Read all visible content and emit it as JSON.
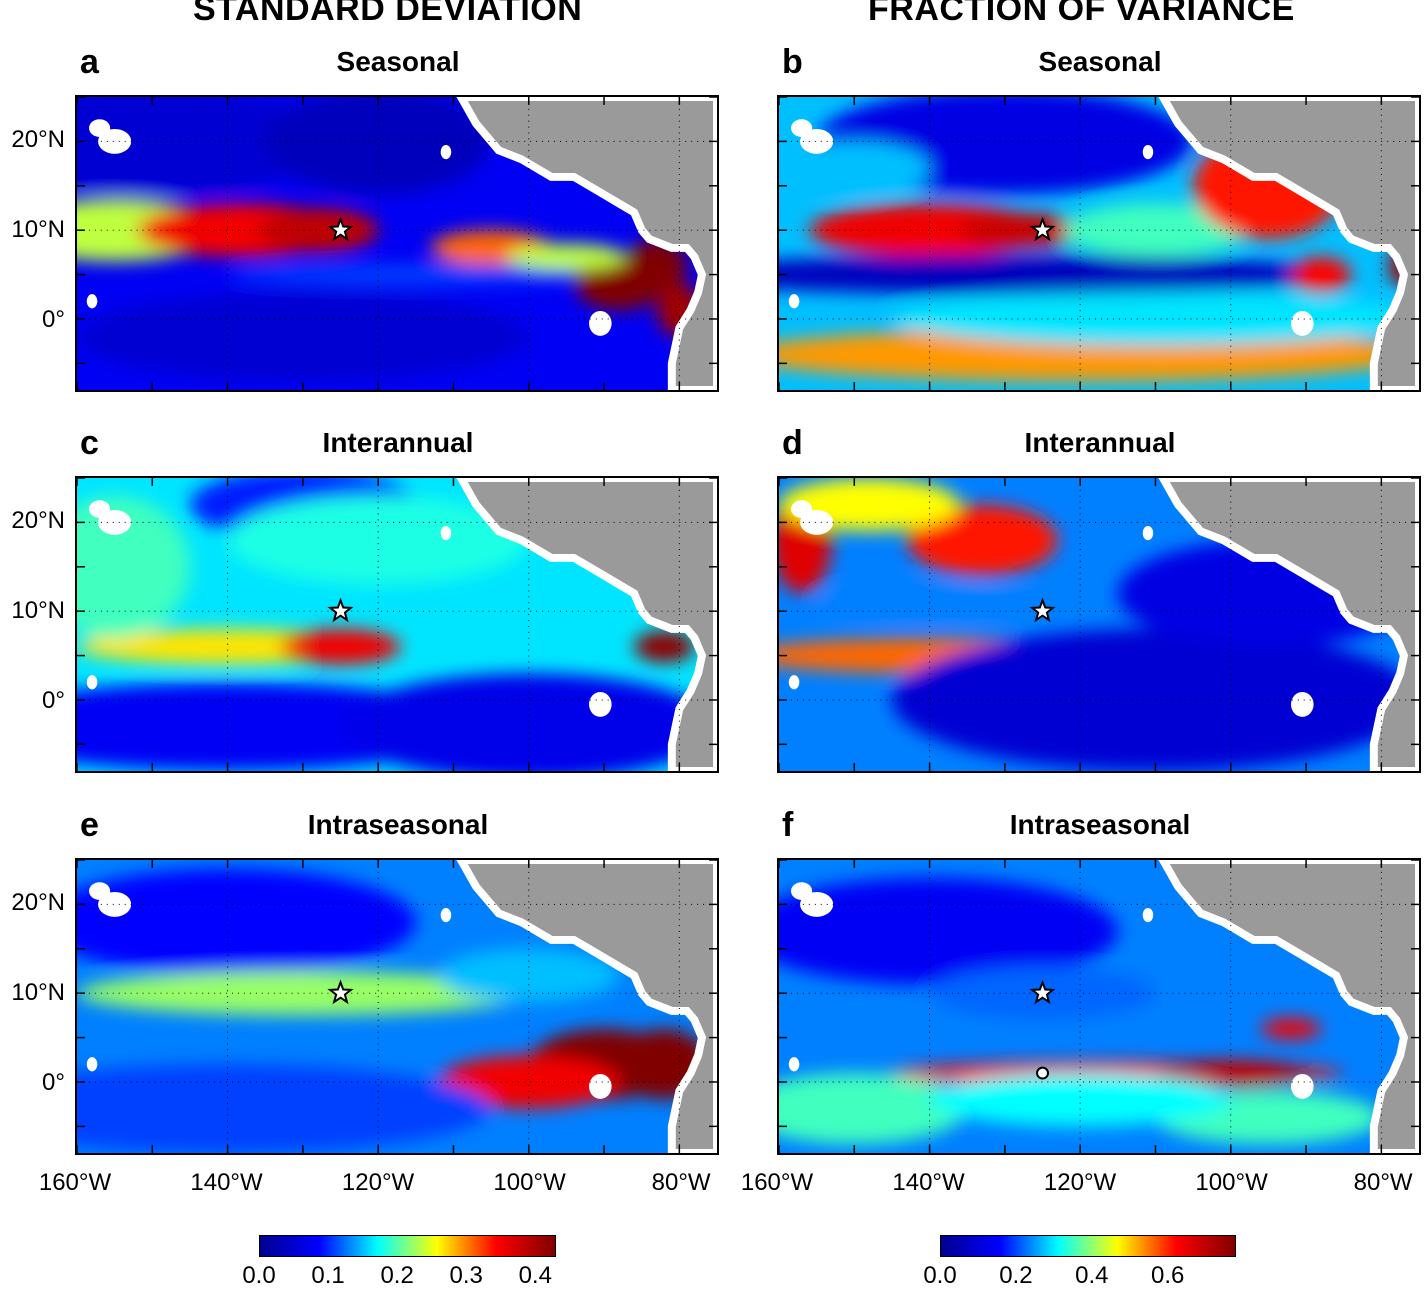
{
  "column_titles": {
    "left": "STANDARD DEVIATION",
    "right": "FRACTION OF VARIANCE"
  },
  "panels": [
    {
      "letter": "a",
      "title": "Seasonal"
    },
    {
      "letter": "b",
      "title": "Seasonal"
    },
    {
      "letter": "c",
      "title": "Interannual"
    },
    {
      "letter": "d",
      "title": "Interannual"
    },
    {
      "letter": "e",
      "title": "Intraseasonal"
    },
    {
      "letter": "f",
      "title": "Intraseasonal"
    }
  ],
  "axes": {
    "lat_labels": [
      "20°N",
      "10°N",
      "0°"
    ],
    "lon_labels": [
      "160°W",
      "140°W",
      "120°W",
      "100°W",
      "80°W"
    ]
  },
  "colorbars": {
    "left": {
      "labels": [
        "0.0",
        "0.1",
        "0.2",
        "0.3",
        "0.4"
      ],
      "range": [
        0,
        0.43
      ]
    },
    "right": {
      "labels": [
        "0.0",
        "0.2",
        "0.4",
        "0.6"
      ],
      "range": [
        0,
        0.78
      ]
    }
  },
  "colors": {
    "land": "#9a9a9a",
    "colormap": [
      "#00008f",
      "#0000ff",
      "#00ffff",
      "#ffff00",
      "#ff0000",
      "#800000"
    ]
  },
  "chart_data": [
    {
      "type": "heatmap",
      "panel": "a",
      "title": "Seasonal",
      "quantity": "STANDARD DEVIATION",
      "xlim": [
        "160°W",
        "75°W"
      ],
      "ylim": [
        "8°S",
        "25°N"
      ],
      "features": [
        {
          "region": "10°N, 140°W–120°W band",
          "value": 0.35
        },
        {
          "region": "8°N, 110°W–100°W",
          "value": 0.3
        },
        {
          "region": "near 5°N, 90°W–80°W coastal",
          "value": 0.43
        },
        {
          "region": "north of 15°N",
          "value": 0.07
        },
        {
          "region": "equatorial band west of 110°W",
          "value": 0.1
        }
      ],
      "markers": [
        {
          "type": "star",
          "lon": "125°W",
          "lat": "10°N"
        }
      ]
    },
    {
      "type": "heatmap",
      "panel": "b",
      "title": "Seasonal",
      "quantity": "FRACTION OF VARIANCE",
      "xlim": [
        "160°W",
        "75°W"
      ],
      "ylim": [
        "8°S",
        "25°N"
      ],
      "features": [
        {
          "region": "10°N, 140°W–125°W",
          "value": 0.65
        },
        {
          "region": "coast 100°W–85°W, 10°N–18°N",
          "value": 0.6
        },
        {
          "region": "4°S–6°S band",
          "value": 0.55
        },
        {
          "region": "4°N–6°N band",
          "value": 0.05
        },
        {
          "region": "north central",
          "value": 0.08
        }
      ],
      "markers": [
        {
          "type": "star",
          "lon": "125°W",
          "lat": "10°N"
        }
      ]
    },
    {
      "type": "heatmap",
      "panel": "c",
      "title": "Interannual",
      "quantity": "STANDARD DEVIATION",
      "xlim": [
        "160°W",
        "75°W"
      ],
      "ylim": [
        "8°S",
        "25°N"
      ],
      "features": [
        {
          "region": "6°N band, 130°W–120°W",
          "value": 0.33
        },
        {
          "region": "6°N, 85°W–80°W",
          "value": 0.38
        },
        {
          "region": "south of equator",
          "value": 0.07
        },
        {
          "region": "north of 15°N",
          "value": 0.12
        }
      ],
      "markers": [
        {
          "type": "star",
          "lon": "125°W",
          "lat": "10°N"
        }
      ]
    },
    {
      "type": "heatmap",
      "panel": "d",
      "title": "Interannual",
      "quantity": "FRACTION OF VARIANCE",
      "xlim": [
        "160°W",
        "75°W"
      ],
      "ylim": [
        "8°S",
        "25°N"
      ],
      "features": [
        {
          "region": "18°N, 140°W–125°W",
          "value": 0.58
        },
        {
          "region": "5°N band, 160°W–120°W",
          "value": 0.55
        },
        {
          "region": "northwest corner",
          "value": 0.65
        },
        {
          "region": "east Pacific south of 5°N",
          "value": 0.05
        }
      ],
      "markers": [
        {
          "type": "star",
          "lon": "125°W",
          "lat": "10°N"
        }
      ]
    },
    {
      "type": "heatmap",
      "panel": "e",
      "title": "Intraseasonal",
      "quantity": "STANDARD DEVIATION",
      "xlim": [
        "160°W",
        "75°W"
      ],
      "ylim": [
        "8°S",
        "25°N"
      ],
      "features": [
        {
          "region": "equator 100°W–80°W",
          "value": 0.43
        },
        {
          "region": "8°N–12°N band",
          "value": 0.22
        },
        {
          "region": "north of 15°N",
          "value": 0.1
        }
      ],
      "markers": [
        {
          "type": "star",
          "lon": "125°W",
          "lat": "10°N"
        }
      ]
    },
    {
      "type": "heatmap",
      "panel": "f",
      "title": "Intraseasonal",
      "quantity": "FRACTION OF VARIANCE",
      "xlim": [
        "160°W",
        "75°W"
      ],
      "ylim": [
        "8°S",
        "25°N"
      ],
      "features": [
        {
          "region": "1°N band, 130°W–90°W",
          "value": 0.65
        },
        {
          "region": "6°N, 95°W–88°W",
          "value": 0.6
        },
        {
          "region": "north central",
          "value": 0.1
        }
      ],
      "markers": [
        {
          "type": "star",
          "lon": "125°W",
          "lat": "10°N"
        },
        {
          "type": "circle",
          "lon": "125°W",
          "lat": "1°N"
        }
      ]
    }
  ]
}
